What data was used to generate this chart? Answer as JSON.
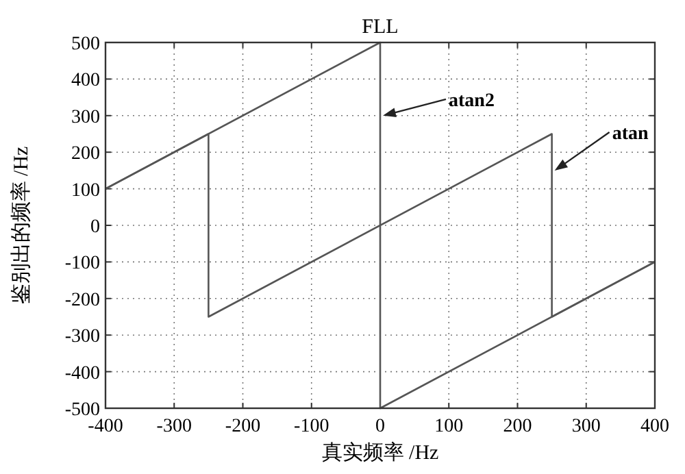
{
  "chart_data": {
    "type": "line",
    "title": "FLL",
    "xlabel": "真实频率 /Hz",
    "ylabel": "鉴别出的频率 /Hz",
    "xlim": [
      -400,
      400
    ],
    "ylim": [
      -500,
      500
    ],
    "xticks": [
      -400,
      -300,
      -200,
      -100,
      0,
      100,
      200,
      300,
      400
    ],
    "yticks": [
      -500,
      -400,
      -300,
      -200,
      -100,
      0,
      100,
      200,
      300,
      400,
      500
    ],
    "grid": true,
    "line_style": "solid",
    "series": [
      {
        "color": "#555555",
        "x": [
          -400,
          0,
          0,
          400
        ],
        "values": [
          100,
          500,
          -500,
          -100
        ]
      },
      {
        "color": "#555555",
        "x": [
          -400,
          -250,
          -250,
          250,
          250,
          400
        ],
        "values": [
          100,
          250,
          -250,
          250,
          -250,
          -100
        ]
      }
    ],
    "annotations": [
      {
        "text": "atan2",
        "x": 0,
        "y": 300
      },
      {
        "text": "atan",
        "x": 250,
        "y": 150
      }
    ]
  }
}
